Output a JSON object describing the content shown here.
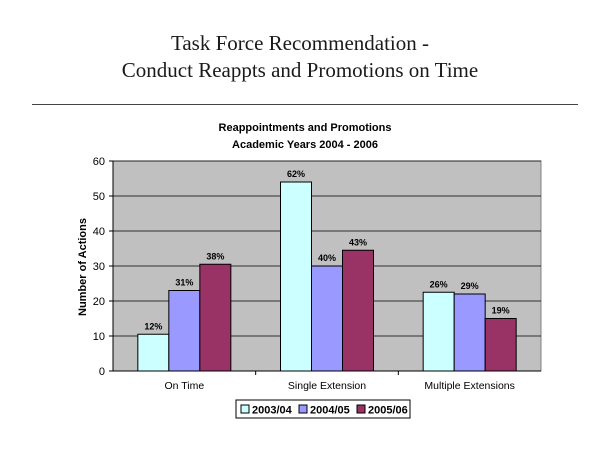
{
  "slide": {
    "title_line1": "Task Force Recommendation -",
    "title_line2": "Conduct Reappts and Promotions on Time"
  },
  "chart_data": {
    "type": "bar",
    "title_line1": "Reappointments and Promotions",
    "title_line2": "Academic Years 2004 - 2006",
    "xlabel": "",
    "ylabel": "Number of Actions",
    "ylim": [
      0,
      60
    ],
    "yticks": [
      0,
      10,
      20,
      30,
      40,
      50,
      60
    ],
    "grid": true,
    "legend_position": "bottom",
    "categories": [
      "On Time",
      "Single Extension",
      "Multiple Extensions"
    ],
    "series": [
      {
        "name": "2003/04",
        "color": "#ccffff",
        "values": [
          10.5,
          54,
          22.5
        ],
        "labels": [
          "12%",
          "62%",
          "26%"
        ]
      },
      {
        "name": "2004/05",
        "color": "#9999ff",
        "values": [
          23,
          30,
          22
        ],
        "labels": [
          "31%",
          "40%",
          "29%"
        ]
      },
      {
        "name": "2005/06",
        "color": "#993366",
        "values": [
          30.5,
          34.5,
          15
        ],
        "labels": [
          "38%",
          "43%",
          "19%"
        ]
      }
    ]
  }
}
